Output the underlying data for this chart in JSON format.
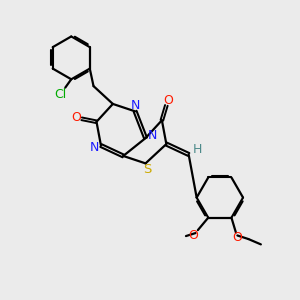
{
  "background_color": "#ebebeb",
  "line_color": "#000000",
  "line_width": 1.6,
  "figsize": [
    3.0,
    3.0
  ],
  "dpi": 100,
  "colors": {
    "N": "#1a1aff",
    "O": "#ff1a00",
    "S": "#ccaa00",
    "Cl": "#00aa00",
    "H": "#4d8a8a",
    "C": "#000000"
  }
}
